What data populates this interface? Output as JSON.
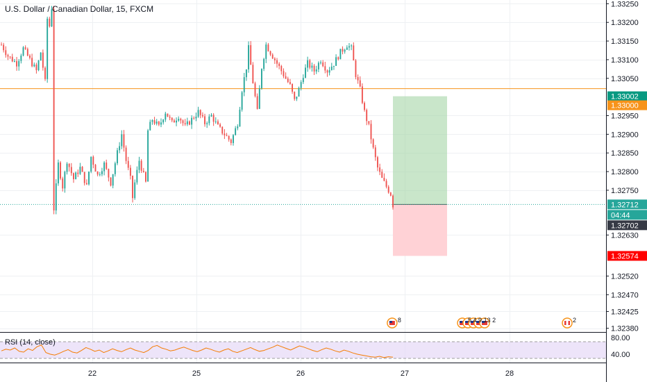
{
  "header": {
    "title": "U.S. Dollar / Canadian Dollar, 15, FXCM"
  },
  "colors": {
    "up": "#26a69a",
    "down": "#ef5350",
    "target_zone": "#a5d6a7",
    "stop_zone": "#ffcdd2",
    "target_badge": "#089981",
    "level_badge": "#f7931a",
    "price_badge": "#26a69a",
    "stop_badge": "#ff0000",
    "rsi_line": "#f57c00",
    "rsi_band": "#e6d8f6"
  },
  "chart_data": {
    "type": "candlestick",
    "title": "U.S. Dollar / Canadian Dollar, 15, FXCM",
    "ylim": [
      1.3237,
      1.3326
    ],
    "price_ticks": [
      "1.33250",
      "1.33200",
      "1.33150",
      "1.33100",
      "1.33050",
      "1.32950",
      "1.32900",
      "1.32850",
      "1.32800",
      "1.32750",
      "1.32630",
      "1.32520",
      "1.32470",
      "1.32425",
      "1.32380"
    ],
    "x_ticks": [
      "22",
      "25",
      "26",
      "27",
      "28"
    ],
    "session_path": [
      [
        0,
        1.3314
      ],
      [
        3,
        1.3311
      ],
      [
        7,
        1.3309
      ],
      [
        10,
        1.3313
      ],
      [
        13,
        1.331
      ],
      [
        16,
        1.3307
      ],
      [
        18,
        1.3312
      ],
      [
        20,
        1.3304
      ],
      [
        21,
        1.3321
      ],
      [
        22,
        1.3319
      ],
      [
        23,
        1.3324
      ],
      [
        24,
        1.327
      ],
      [
        26,
        1.3282
      ],
      [
        28,
        1.3276
      ],
      [
        30,
        1.3283
      ],
      [
        33,
        1.3278
      ],
      [
        36,
        1.3281
      ],
      [
        39,
        1.3276
      ],
      [
        41,
        1.3284
      ],
      [
        44,
        1.3279
      ],
      [
        47,
        1.3282
      ],
      [
        50,
        1.3277
      ],
      [
        53,
        1.3285
      ],
      [
        55,
        1.329
      ],
      [
        57,
        1.3283
      ],
      [
        59,
        1.3278
      ],
      [
        60,
        1.3273
      ],
      [
        61,
        1.3277
      ],
      [
        63,
        1.3283
      ],
      [
        65,
        1.3279
      ],
      [
        66,
        1.3277
      ],
      [
        67,
        1.3291
      ],
      [
        69,
        1.3294
      ],
      [
        72,
        1.3292
      ],
      [
        75,
        1.3296
      ],
      [
        78,
        1.3293
      ],
      [
        81,
        1.3295
      ],
      [
        84,
        1.3292
      ],
      [
        87,
        1.3294
      ],
      [
        90,
        1.3296
      ],
      [
        93,
        1.3293
      ],
      [
        96,
        1.3295
      ],
      [
        99,
        1.3292
      ],
      [
        102,
        1.329
      ],
      [
        105,
        1.3288
      ],
      [
        108,
        1.3293
      ],
      [
        110,
        1.3302
      ],
      [
        112,
        1.3308
      ],
      [
        113,
        1.3313
      ],
      [
        115,
        1.3304
      ],
      [
        117,
        1.3296
      ],
      [
        119,
        1.3308
      ],
      [
        121,
        1.3314
      ],
      [
        123,
        1.3312
      ],
      [
        126,
        1.3309
      ],
      [
        129,
        1.3306
      ],
      [
        132,
        1.3303
      ],
      [
        134,
        1.3299
      ],
      [
        136,
        1.3302
      ],
      [
        138,
        1.3306
      ],
      [
        140,
        1.3309
      ],
      [
        143,
        1.3307
      ],
      [
        146,
        1.331
      ],
      [
        149,
        1.3307
      ],
      [
        152,
        1.3309
      ],
      [
        155,
        1.3312
      ],
      [
        158,
        1.3314
      ],
      [
        160,
        1.3313
      ],
      [
        162,
        1.3306
      ],
      [
        164,
        1.3302
      ],
      [
        166,
        1.3296
      ],
      [
        168,
        1.3292
      ],
      [
        170,
        1.3286
      ],
      [
        172,
        1.3281
      ],
      [
        174,
        1.3278
      ],
      [
        176,
        1.3276
      ],
      [
        178,
        1.3274
      ],
      [
        179,
        1.3271
      ]
    ],
    "session_x": [
      0,
      24,
      30,
      60,
      67,
      69,
      110,
      113,
      119,
      160,
      179
    ],
    "current_price": "1.32712",
    "countdown": "04:44",
    "bid_price": "1.32702",
    "horizontal_level": "1.33000",
    "position": {
      "entry": 1.32712,
      "target": "1.33002",
      "stop": "1.32574"
    },
    "events": [
      {
        "flag": "us",
        "count": "8",
        "x_tick_offset": -0.12
      },
      {
        "flag": "us-stack",
        "count": "5 4 9 13 2",
        "x_tick_offset": 0.55
      },
      {
        "flag": "ca",
        "count": "2",
        "x_tick_offset": 1.55
      }
    ],
    "rsi": {
      "label": "RSI (14, close)",
      "upper": 70,
      "lower": 30,
      "axis_ticks": [
        "80.00",
        "40.00"
      ],
      "values": [
        48,
        52,
        50,
        55,
        47,
        45,
        53,
        49,
        58,
        62,
        44,
        40,
        38,
        42,
        47,
        51,
        45,
        43,
        49,
        56,
        52,
        47,
        50,
        44,
        48,
        53,
        49,
        46,
        51,
        55,
        50,
        47,
        44,
        49,
        58,
        61,
        55,
        52,
        48,
        50,
        54,
        57,
        53,
        49,
        46,
        50,
        55,
        52,
        48,
        45,
        50,
        53,
        47,
        44,
        48,
        52,
        56,
        51,
        47,
        49,
        53,
        57,
        62,
        58,
        54,
        50,
        55,
        60,
        57,
        53,
        49,
        46,
        51,
        55,
        52,
        48,
        45,
        50,
        47,
        43,
        40,
        38,
        36,
        34,
        33,
        35,
        32,
        34,
        33
      ]
    }
  }
}
